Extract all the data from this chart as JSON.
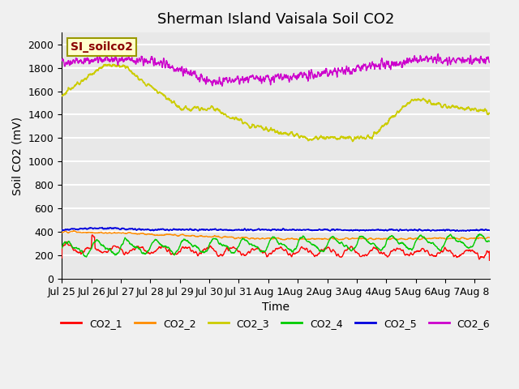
{
  "title": "Sherman Island Vaisala Soil CO2",
  "xlabel": "Time",
  "ylabel": "Soil CO2 (mV)",
  "legend_label": "SI_soilco2",
  "ylim": [
    0,
    2100
  ],
  "yticks": [
    0,
    200,
    400,
    600,
    800,
    1000,
    1200,
    1400,
    1600,
    1800,
    2000
  ],
  "xtick_labels": [
    "Jul 25",
    "Jul 26",
    "Jul 27",
    "Jul 28",
    "Jul 29",
    "Jul 30",
    "Jul 31",
    "Aug 1",
    "Aug 2",
    "Aug 3",
    "Aug 4",
    "Aug 5",
    "Aug 6",
    "Aug 7",
    "Aug 8"
  ],
  "colors": {
    "CO2_1": "#ff0000",
    "CO2_2": "#ff8c00",
    "CO2_3": "#cccc00",
    "CO2_4": "#00cc00",
    "CO2_5": "#0000dd",
    "CO2_6": "#cc00cc"
  },
  "bg_color": "#e8e8e8",
  "grid_color": "#ffffff"
}
